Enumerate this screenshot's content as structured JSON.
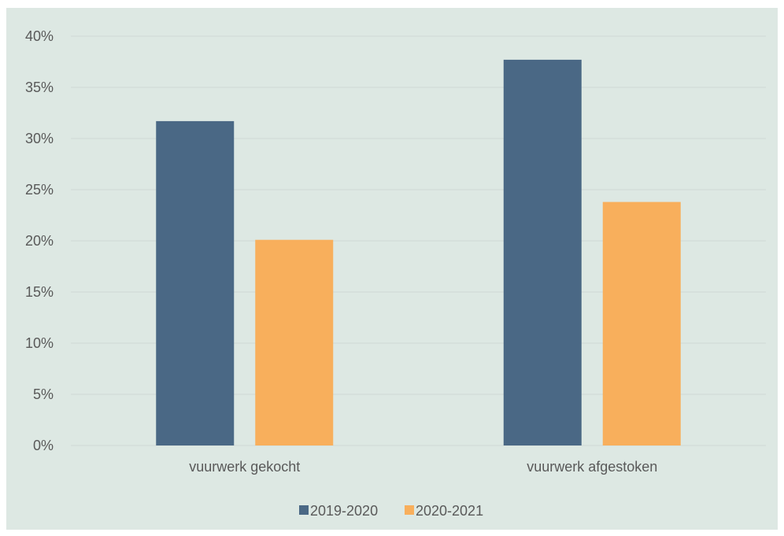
{
  "chart_data": {
    "type": "bar",
    "categories": [
      "vuurwerk gekocht",
      "vuurwerk afgestoken"
    ],
    "series": [
      {
        "name": "2019-2020",
        "values": [
          31.7,
          37.7
        ],
        "color": "#4a6885"
      },
      {
        "name": "2020-2021",
        "values": [
          20.1,
          23.8
        ],
        "color": "#f8af5c"
      }
    ],
    "title": "",
    "xlabel": "",
    "ylabel": "",
    "ylim": [
      0,
      40
    ],
    "yticks": [
      "0%",
      "5%",
      "10%",
      "15%",
      "20%",
      "25%",
      "30%",
      "35%",
      "40%"
    ],
    "grid": true,
    "legend_position": "bottom",
    "background_color": "#dde8e3",
    "gridline_color": "#cfd9d5"
  }
}
